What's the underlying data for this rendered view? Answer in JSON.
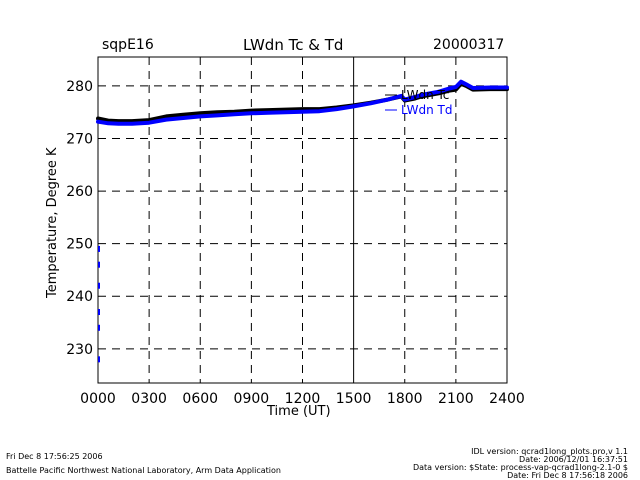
{
  "header": {
    "site": "sqpE16",
    "title": "LWdn Tc & Td",
    "date": "20000317"
  },
  "footer": {
    "left_line1": "Fri Dec  8 17:56:25 2006",
    "left_line2": "Battelle Pacific Northwest National Laboratory, Arm Data Application",
    "right_line1": "IDL version: qcrad1long_plots.pro,v 1.1",
    "right_line2": "Date: 2006/12/01 16:37:51",
    "right_line3": "Data version: $State: process-vap-qcrad1long-2.1-0 $",
    "right_line4": "Date: Fri Dec  8 17:56:18 2006"
  },
  "chart_data": {
    "type": "line",
    "title": "LWdn Tc & Td",
    "xlabel": "Time (UT)",
    "ylabel": "Temperature, Degree K",
    "xlim": [
      0,
      2400
    ],
    "ylim": [
      223.5,
      285.5
    ],
    "x_ticks": [
      "0000",
      "0300",
      "0600",
      "0900",
      "1200",
      "1500",
      "1800",
      "2100",
      "2400"
    ],
    "y_ticks": [
      "230",
      "240",
      "250",
      "260",
      "270",
      "280"
    ],
    "grid": true,
    "legend_position": "top-right",
    "series": [
      {
        "name": "LWdn Tc",
        "color": "#000000",
        "points": [
          [
            0,
            273.8
          ],
          [
            60,
            273.4
          ],
          [
            120,
            273.3
          ],
          [
            200,
            273.3
          ],
          [
            300,
            273.5
          ],
          [
            400,
            274.2
          ],
          [
            500,
            274.5
          ],
          [
            600,
            274.8
          ],
          [
            700,
            275.0
          ],
          [
            800,
            275.1
          ],
          [
            900,
            275.3
          ],
          [
            1000,
            275.4
          ],
          [
            1100,
            275.5
          ],
          [
            1200,
            275.6
          ],
          [
            1300,
            275.6
          ],
          [
            1400,
            275.9
          ],
          [
            1500,
            276.3
          ],
          [
            1600,
            276.8
          ],
          [
            1700,
            277.4
          ],
          [
            1780,
            278.0
          ],
          [
            1800,
            277.2
          ],
          [
            1860,
            277.6
          ],
          [
            1900,
            278.0
          ],
          [
            2000,
            278.6
          ],
          [
            2060,
            279.1
          ],
          [
            2100,
            279.3
          ],
          [
            2130,
            280.4
          ],
          [
            2160,
            280.0
          ],
          [
            2200,
            279.3
          ],
          [
            2300,
            279.4
          ],
          [
            2400,
            279.4
          ]
        ]
      },
      {
        "name": "LWdn Td",
        "color": "#0000ff",
        "points": [
          [
            0,
            273.2
          ],
          [
            60,
            272.9
          ],
          [
            120,
            272.8
          ],
          [
            200,
            272.8
          ],
          [
            300,
            273.0
          ],
          [
            400,
            273.6
          ],
          [
            500,
            273.9
          ],
          [
            600,
            274.2
          ],
          [
            700,
            274.4
          ],
          [
            800,
            274.6
          ],
          [
            900,
            274.8
          ],
          [
            1000,
            274.9
          ],
          [
            1100,
            275.0
          ],
          [
            1200,
            275.1
          ],
          [
            1300,
            275.2
          ],
          [
            1400,
            275.6
          ],
          [
            1500,
            276.1
          ],
          [
            1600,
            276.7
          ],
          [
            1700,
            277.4
          ],
          [
            1780,
            278.1
          ],
          [
            1800,
            277.4
          ],
          [
            1860,
            277.9
          ],
          [
            1900,
            278.3
          ],
          [
            2000,
            278.9
          ],
          [
            2060,
            279.5
          ],
          [
            2100,
            279.8
          ],
          [
            2130,
            280.8
          ],
          [
            2160,
            280.3
          ],
          [
            2200,
            279.6
          ],
          [
            2300,
            279.7
          ],
          [
            2400,
            279.7
          ]
        ]
      }
    ]
  }
}
